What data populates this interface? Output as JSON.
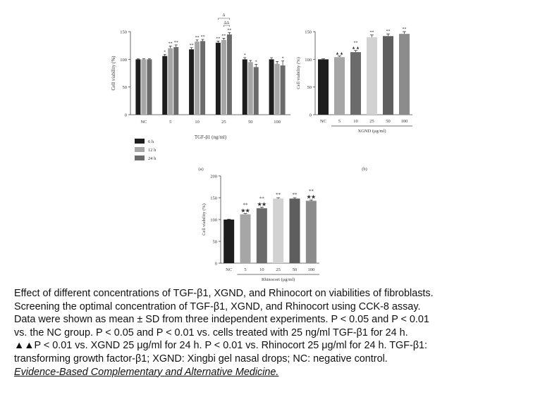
{
  "chart_data": [
    {
      "type": "bar",
      "panel_label": "(a)",
      "categories": [
        "NC",
        "5",
        "10",
        "25",
        "50",
        "100"
      ],
      "xlabel": "TGF-β1 (ng/ml)",
      "ylabel": "Cell viability (%)",
      "ylim": [
        0,
        150
      ],
      "yticks": [
        "0",
        "50",
        "100",
        "150"
      ],
      "legend_position": "bottom-left",
      "series": [
        {
          "name": "6 h",
          "color": "#1e1e1e",
          "values": [
            100,
            106,
            118,
            130,
            100,
            100
          ],
          "errors": [
            1,
            3,
            3,
            3,
            3,
            3
          ]
        },
        {
          "name": "12 h",
          "color": "#a6a6a6",
          "values": [
            100,
            120,
            132,
            135,
            95,
            92
          ],
          "errors": [
            1,
            4,
            3,
            3,
            3,
            4
          ]
        },
        {
          "name": "24 h",
          "color": "#6b6b6b",
          "values": [
            100,
            122,
            133,
            145,
            86,
            89
          ],
          "errors": [
            1,
            4,
            3,
            3,
            5,
            8
          ]
        }
      ],
      "annotations": [
        {
          "cat": 1,
          "series": 0,
          "text": "*"
        },
        {
          "cat": 1,
          "series": 1,
          "text": "**"
        },
        {
          "cat": 1,
          "series": 2,
          "text": "**"
        },
        {
          "cat": 2,
          "series": 0,
          "text": "**"
        },
        {
          "cat": 2,
          "series": 1,
          "text": "**"
        },
        {
          "cat": 2,
          "series": 2,
          "text": "**"
        },
        {
          "cat": 3,
          "series": 0,
          "text": "**"
        },
        {
          "cat": 3,
          "series": 1,
          "text": "**"
        },
        {
          "cat": 3,
          "series": 2,
          "text": "**"
        },
        {
          "cat": 4,
          "series": 0,
          "text": "*"
        },
        {
          "cat": 4,
          "series": 2,
          "text": "*"
        },
        {
          "cat": 5,
          "series": 2,
          "text": "*"
        }
      ],
      "brackets": [
        "Δ",
        "ΔΔ"
      ]
    },
    {
      "type": "bar",
      "panel_label": "(b)",
      "categories": [
        "NC",
        "5",
        "10",
        "25",
        "50",
        "100"
      ],
      "xlabel": "XGND (μg/ml)",
      "ylabel": "Cell viability (%)",
      "ylim": [
        0,
        150
      ],
      "yticks": [
        "0",
        "50",
        "100",
        "150"
      ],
      "values": [
        100,
        104,
        113,
        140,
        142,
        146
      ],
      "errors": [
        1,
        2,
        3,
        4,
        4,
        4
      ],
      "colors": [
        "#1e1e1e",
        "#a6a6a6",
        "#6b6b6b",
        "#d2d2d2",
        "#5e5e5e",
        "#8c8c8c"
      ],
      "annotations": [
        {
          "cat": 1,
          "text": "▲▲"
        },
        {
          "cat": 2,
          "text": "**"
        },
        {
          "cat": 2,
          "text": "▲▲"
        },
        {
          "cat": 3,
          "text": "**"
        },
        {
          "cat": 4,
          "text": "**"
        },
        {
          "cat": 5,
          "text": "**"
        }
      ]
    },
    {
      "type": "bar",
      "categories": [
        "NC",
        "5",
        "10",
        "25",
        "50",
        "100"
      ],
      "xlabel": "Rhinocort (μg/ml)",
      "ylabel": "Cell viability (%)",
      "ylim": [
        0,
        200
      ],
      "yticks": [
        "0",
        "50",
        "100",
        "150",
        "200"
      ],
      "values": [
        100,
        112,
        126,
        148,
        148,
        143
      ],
      "errors": [
        1,
        2,
        2,
        2,
        2,
        2
      ],
      "colors": [
        "#1e1e1e",
        "#a6a6a6",
        "#6b6b6b",
        "#d2d2d2",
        "#5e5e5e",
        "#8c8c8c"
      ],
      "annotations": [
        {
          "cat": 1,
          "text": "**"
        },
        {
          "cat": 1,
          "text": "★★"
        },
        {
          "cat": 2,
          "text": "**"
        },
        {
          "cat": 2,
          "text": "★★"
        },
        {
          "cat": 3,
          "text": "**"
        },
        {
          "cat": 4,
          "text": "**"
        },
        {
          "cat": 5,
          "text": "**"
        },
        {
          "cat": 5,
          "text": "★★"
        }
      ]
    }
  ],
  "caption": {
    "lines": [
      "Effect of different concentrations of TGF-β1, XGND, and Rhinocort on viabilities of fibroblasts.",
      "Screening the optimal concentration of TGF-β1, XGND, and Rhinocort using CCK-8 assay.",
      "Data were shown as mean ± SD from three independent experiments. P < 0.05 and   P < 0.01",
      "vs. the NC group.  P < 0.05 and   P < 0.01 vs. cells treated with 25 ng/ml TGF-β1 for 24 h.",
      "▲▲P < 0.01 vs. XGND 25 μg/ml for 24 h.   P < 0.01 vs. Rhinocort 25 μg/ml for 24 h. TGF-β1:",
      "transforming growth factor-β1; XGND: Xingbi gel nasal drops; NC: negative control."
    ],
    "journal": "Evidence-Based Complementary and Alternative Medicine."
  }
}
